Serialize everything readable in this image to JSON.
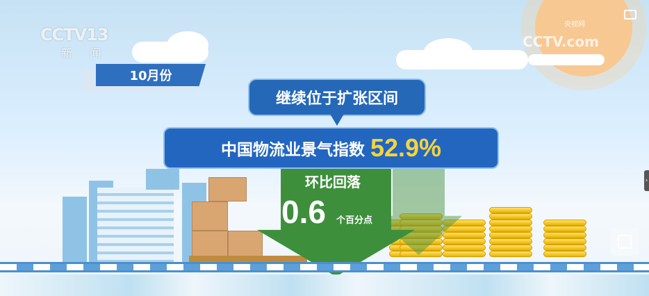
{
  "logo": {
    "channel": "CCTV13",
    "name": "新 闻"
  },
  "watermark": {
    "text": "CCTV.com",
    "cn": "央视网"
  },
  "month_label": "10月份",
  "bubble_text": "继续位于扩张区间",
  "headline": {
    "label": "中国物流业景气指数",
    "value": "52.9%"
  },
  "change": {
    "label": "环比回落",
    "value": "0.6",
    "unit": "个百分点"
  },
  "colors": {
    "banner": "#2366c0",
    "value": "#f6d43a",
    "arrow": "#3d8f3c",
    "sun": "#f8c892"
  },
  "controls": {
    "fullscreen_icon": "screen-icon",
    "side_toggle": "›",
    "pip_icon": "pip-icon"
  }
}
